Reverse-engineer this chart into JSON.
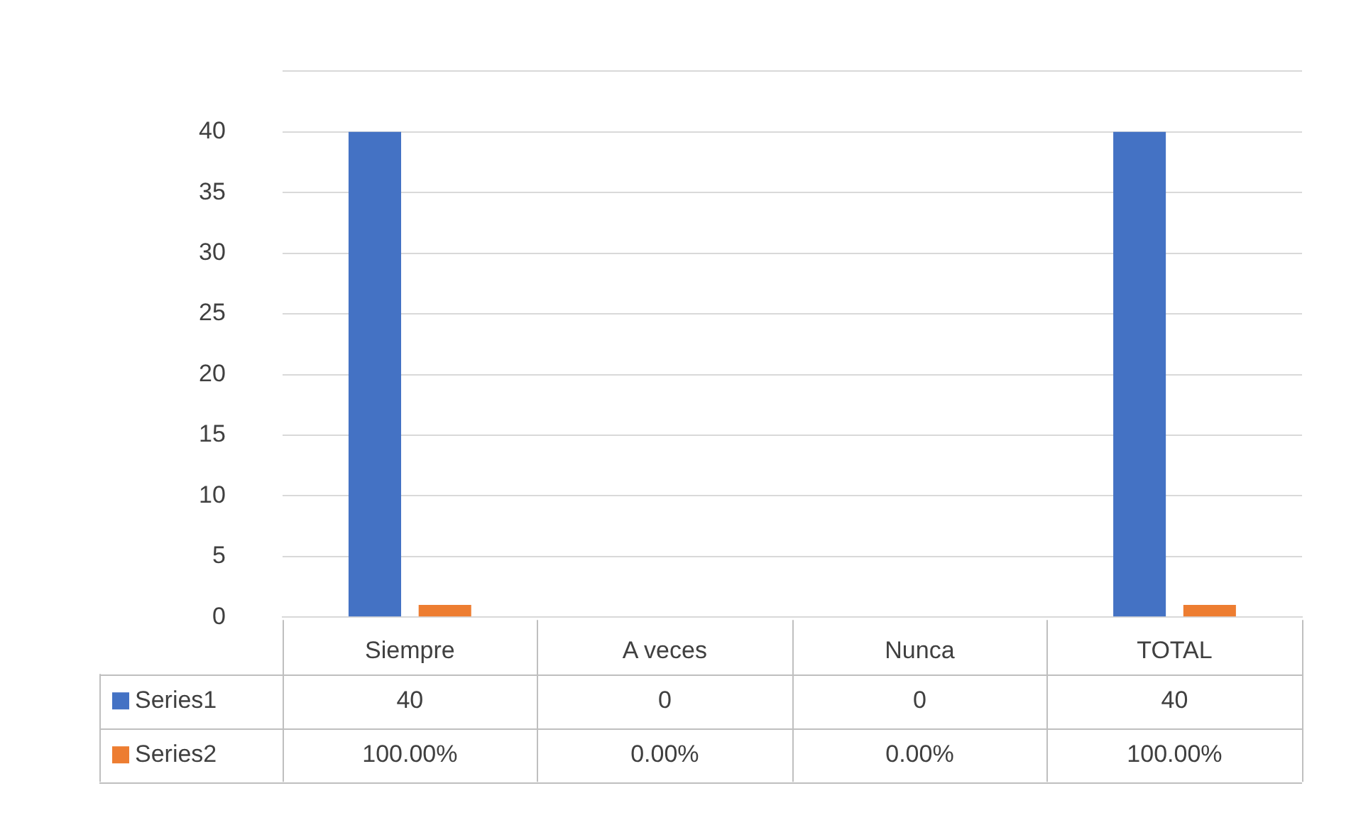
{
  "chart_data": {
    "type": "bar",
    "categories": [
      "Siempre",
      "A veces",
      "Nunca",
      "TOTAL"
    ],
    "series": [
      {
        "name": "Series1",
        "color": "#4472c4",
        "values": [
          40,
          0,
          0,
          40
        ],
        "value_labels": [
          "40",
          "0",
          "0",
          "40"
        ]
      },
      {
        "name": "Series2",
        "color": "#ed7d31",
        "values": [
          1,
          0,
          0,
          1
        ],
        "value_labels": [
          "100.00%",
          "0.00%",
          "0.00%",
          "100.00%"
        ]
      }
    ],
    "ylim": [
      0,
      45
    ],
    "yticks": [
      0,
      5,
      10,
      15,
      20,
      25,
      30,
      35,
      40,
      {
        "value": 45,
        "label": null
      }
    ],
    "grid": "y",
    "legend": "bottom"
  }
}
